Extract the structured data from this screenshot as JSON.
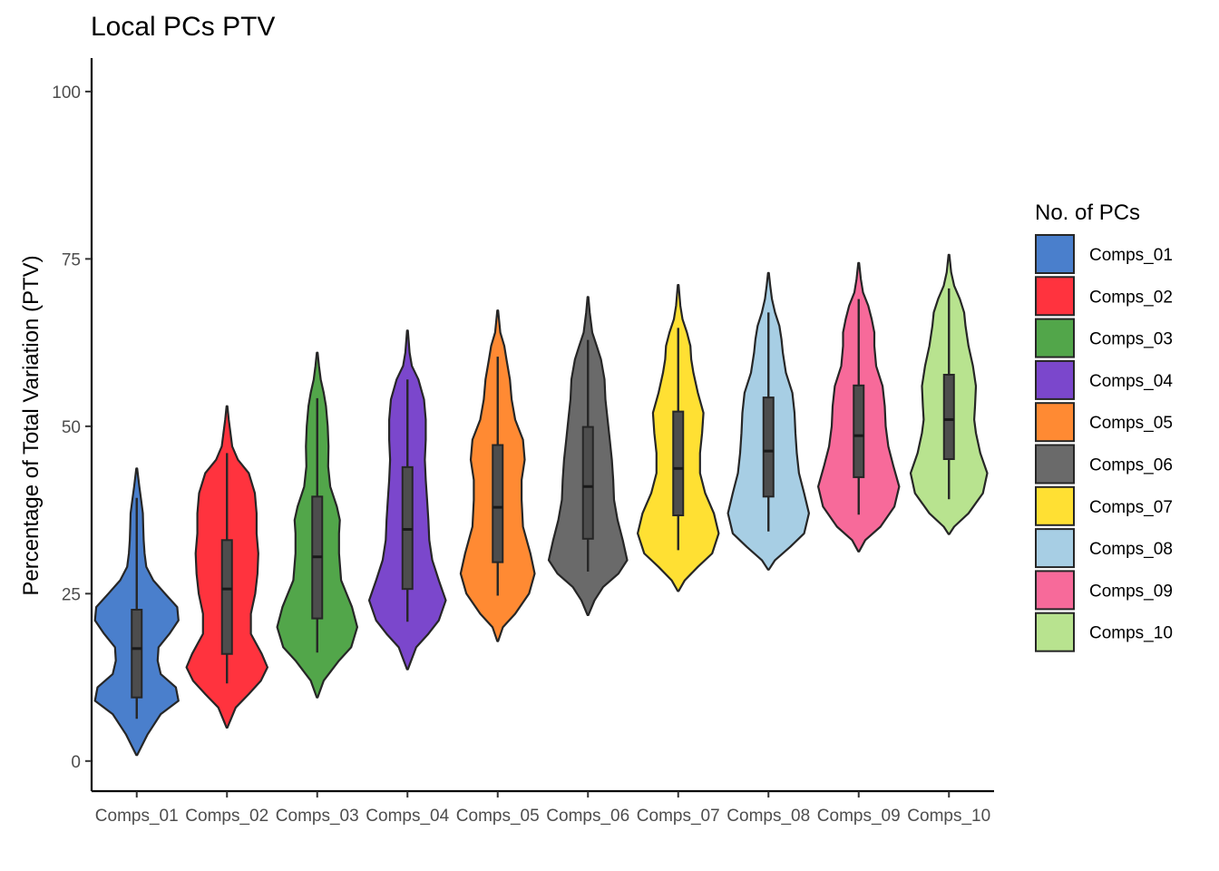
{
  "chart_data": {
    "type": "violin",
    "title": "Local PCs PTV",
    "xlabel": "",
    "ylabel": "Percentage of Total Variation (PTV)",
    "ylim": [
      -4.5,
      105
    ],
    "yticks": [
      0,
      25,
      50,
      75,
      100
    ],
    "grid": false,
    "legend": {
      "title": "No. of PCs",
      "position": "right"
    },
    "categories": [
      "Comps_01",
      "Comps_02",
      "Comps_03",
      "Comps_04",
      "Comps_05",
      "Comps_06",
      "Comps_07",
      "Comps_08",
      "Comps_09",
      "Comps_10"
    ],
    "series": [
      {
        "name": "Comps_01",
        "color": "#4A7FCC",
        "min": 6.3,
        "q1": 9.5,
        "median": 16.8,
        "q3": 22.6,
        "max": 39.3,
        "vmin": 0.9,
        "vmax": 43.7,
        "density": [
          [
            0.9,
            0.01
          ],
          [
            4,
            0.25
          ],
          [
            7,
            0.55
          ],
          [
            9,
            0.96
          ],
          [
            11,
            0.9
          ],
          [
            13,
            0.55
          ],
          [
            15,
            0.48
          ],
          [
            17,
            0.5
          ],
          [
            19,
            0.75
          ],
          [
            21,
            0.96
          ],
          [
            23,
            0.93
          ],
          [
            25,
            0.65
          ],
          [
            27,
            0.38
          ],
          [
            29,
            0.22
          ],
          [
            31,
            0.18
          ],
          [
            33,
            0.16
          ],
          [
            35,
            0.15
          ],
          [
            37,
            0.14
          ],
          [
            39,
            0.1
          ],
          [
            41,
            0.06
          ],
          [
            43.7,
            0.01
          ]
        ]
      },
      {
        "name": "Comps_02",
        "color": "#FF333E",
        "min": 11.6,
        "q1": 16.0,
        "median": 25.7,
        "q3": 33.0,
        "max": 46.0,
        "vmin": 5.0,
        "vmax": 53.0,
        "density": [
          [
            5,
            0.01
          ],
          [
            8,
            0.2
          ],
          [
            10,
            0.5
          ],
          [
            12,
            0.78
          ],
          [
            14,
            0.93
          ],
          [
            16,
            0.8
          ],
          [
            19,
            0.55
          ],
          [
            22,
            0.55
          ],
          [
            25,
            0.65
          ],
          [
            28,
            0.7
          ],
          [
            31,
            0.72
          ],
          [
            34,
            0.68
          ],
          [
            37,
            0.68
          ],
          [
            40,
            0.64
          ],
          [
            43,
            0.5
          ],
          [
            45,
            0.25
          ],
          [
            47,
            0.12
          ],
          [
            49,
            0.08
          ],
          [
            51,
            0.04
          ],
          [
            53,
            0.01
          ]
        ]
      },
      {
        "name": "Comps_03",
        "color": "#52A64A",
        "min": 16.2,
        "q1": 21.3,
        "median": 30.5,
        "q3": 39.5,
        "max": 54.2,
        "vmin": 9.5,
        "vmax": 61.0,
        "density": [
          [
            9.5,
            0.01
          ],
          [
            12,
            0.15
          ],
          [
            15,
            0.5
          ],
          [
            17,
            0.78
          ],
          [
            20,
            0.92
          ],
          [
            23,
            0.8
          ],
          [
            27,
            0.55
          ],
          [
            31,
            0.5
          ],
          [
            34,
            0.5
          ],
          [
            36,
            0.52
          ],
          [
            38,
            0.45
          ],
          [
            41,
            0.3
          ],
          [
            44,
            0.25
          ],
          [
            47,
            0.26
          ],
          [
            50,
            0.24
          ],
          [
            53,
            0.2
          ],
          [
            55,
            0.15
          ],
          [
            57,
            0.08
          ],
          [
            59,
            0.04
          ],
          [
            61,
            0.01
          ]
        ]
      },
      {
        "name": "Comps_04",
        "color": "#7B47CC",
        "min": 20.8,
        "q1": 25.7,
        "median": 34.6,
        "q3": 43.9,
        "max": 57.0,
        "vmin": 13.7,
        "vmax": 64.3,
        "density": [
          [
            13.7,
            0.01
          ],
          [
            17,
            0.2
          ],
          [
            19,
            0.48
          ],
          [
            21,
            0.72
          ],
          [
            24,
            0.88
          ],
          [
            27,
            0.72
          ],
          [
            30,
            0.57
          ],
          [
            33,
            0.5
          ],
          [
            36,
            0.48
          ],
          [
            39,
            0.45
          ],
          [
            42,
            0.42
          ],
          [
            45,
            0.4
          ],
          [
            48,
            0.42
          ],
          [
            51,
            0.42
          ],
          [
            54,
            0.38
          ],
          [
            57,
            0.25
          ],
          [
            59,
            0.1
          ],
          [
            61,
            0.05
          ],
          [
            64.3,
            0.01
          ]
        ]
      },
      {
        "name": "Comps_05",
        "color": "#FF8A33",
        "min": 24.7,
        "q1": 29.7,
        "median": 37.9,
        "q3": 47.2,
        "max": 60.4,
        "vmin": 17.9,
        "vmax": 67.3,
        "density": [
          [
            17.9,
            0.01
          ],
          [
            20,
            0.12
          ],
          [
            22,
            0.4
          ],
          [
            25,
            0.72
          ],
          [
            28,
            0.85
          ],
          [
            31,
            0.75
          ],
          [
            35,
            0.58
          ],
          [
            39,
            0.55
          ],
          [
            42,
            0.55
          ],
          [
            45,
            0.62
          ],
          [
            48,
            0.58
          ],
          [
            51,
            0.4
          ],
          [
            54,
            0.32
          ],
          [
            57,
            0.28
          ],
          [
            60,
            0.2
          ],
          [
            62,
            0.15
          ],
          [
            64,
            0.06
          ],
          [
            67.3,
            0.01
          ]
        ]
      },
      {
        "name": "Comps_06",
        "color": "#6A6A6A",
        "min": 28.3,
        "q1": 33.2,
        "median": 41.0,
        "q3": 49.9,
        "max": 62.9,
        "vmin": 21.8,
        "vmax": 69.3,
        "density": [
          [
            21.8,
            0.01
          ],
          [
            24,
            0.15
          ],
          [
            26,
            0.35
          ],
          [
            28,
            0.7
          ],
          [
            30,
            0.9
          ],
          [
            33,
            0.8
          ],
          [
            36,
            0.68
          ],
          [
            39,
            0.6
          ],
          [
            42,
            0.58
          ],
          [
            45,
            0.55
          ],
          [
            48,
            0.5
          ],
          [
            51,
            0.45
          ],
          [
            54,
            0.4
          ],
          [
            57,
            0.38
          ],
          [
            60,
            0.3
          ],
          [
            62,
            0.2
          ],
          [
            64,
            0.1
          ],
          [
            67,
            0.04
          ],
          [
            69.3,
            0.01
          ]
        ]
      },
      {
        "name": "Comps_07",
        "color": "#FFE033",
        "min": 31.5,
        "q1": 36.7,
        "median": 43.7,
        "q3": 52.2,
        "max": 64.7,
        "vmin": 25.4,
        "vmax": 71.1,
        "density": [
          [
            25.4,
            0.01
          ],
          [
            27,
            0.15
          ],
          [
            29,
            0.45
          ],
          [
            31,
            0.78
          ],
          [
            34,
            0.93
          ],
          [
            37,
            0.82
          ],
          [
            40,
            0.62
          ],
          [
            43,
            0.5
          ],
          [
            46,
            0.5
          ],
          [
            49,
            0.55
          ],
          [
            52,
            0.58
          ],
          [
            55,
            0.45
          ],
          [
            58,
            0.35
          ],
          [
            60,
            0.3
          ],
          [
            62,
            0.28
          ],
          [
            64,
            0.2
          ],
          [
            66,
            0.1
          ],
          [
            68,
            0.05
          ],
          [
            71.1,
            0.01
          ]
        ]
      },
      {
        "name": "Comps_08",
        "color": "#A7CEE4",
        "min": 34.3,
        "q1": 39.5,
        "median": 46.3,
        "q3": 54.3,
        "max": 67.0,
        "vmin": 28.6,
        "vmax": 72.9,
        "density": [
          [
            28.6,
            0.01
          ],
          [
            30,
            0.15
          ],
          [
            32,
            0.5
          ],
          [
            34,
            0.82
          ],
          [
            37,
            0.93
          ],
          [
            40,
            0.82
          ],
          [
            43,
            0.7
          ],
          [
            46,
            0.65
          ],
          [
            49,
            0.62
          ],
          [
            52,
            0.6
          ],
          [
            55,
            0.55
          ],
          [
            58,
            0.4
          ],
          [
            61,
            0.33
          ],
          [
            63,
            0.3
          ],
          [
            65,
            0.25
          ],
          [
            67,
            0.15
          ],
          [
            69,
            0.08
          ],
          [
            71,
            0.04
          ],
          [
            72.9,
            0.01
          ]
        ]
      },
      {
        "name": "Comps_09",
        "color": "#F76A9A",
        "min": 36.8,
        "q1": 42.4,
        "median": 48.6,
        "q3": 56.1,
        "max": 69.0,
        "vmin": 31.3,
        "vmax": 74.4,
        "density": [
          [
            31.3,
            0.01
          ],
          [
            33,
            0.15
          ],
          [
            35,
            0.5
          ],
          [
            38,
            0.82
          ],
          [
            41,
            0.93
          ],
          [
            44,
            0.8
          ],
          [
            47,
            0.68
          ],
          [
            50,
            0.62
          ],
          [
            53,
            0.6
          ],
          [
            56,
            0.55
          ],
          [
            59,
            0.4
          ],
          [
            62,
            0.36
          ],
          [
            64,
            0.36
          ],
          [
            66,
            0.3
          ],
          [
            68,
            0.22
          ],
          [
            70,
            0.1
          ],
          [
            72,
            0.05
          ],
          [
            74.4,
            0.01
          ]
        ]
      },
      {
        "name": "Comps_10",
        "color": "#B8E38F",
        "min": 39.1,
        "q1": 45.1,
        "median": 51.0,
        "q3": 57.7,
        "max": 70.6,
        "vmin": 33.9,
        "vmax": 75.6,
        "density": [
          [
            33.9,
            0.01
          ],
          [
            35,
            0.12
          ],
          [
            37,
            0.45
          ],
          [
            40,
            0.78
          ],
          [
            43,
            0.88
          ],
          [
            46,
            0.72
          ],
          [
            49,
            0.62
          ],
          [
            51,
            0.58
          ],
          [
            53,
            0.6
          ],
          [
            56,
            0.62
          ],
          [
            59,
            0.55
          ],
          [
            62,
            0.45
          ],
          [
            65,
            0.38
          ],
          [
            67,
            0.35
          ],
          [
            69,
            0.25
          ],
          [
            71,
            0.12
          ],
          [
            73,
            0.05
          ],
          [
            75.6,
            0.01
          ]
        ]
      }
    ]
  }
}
